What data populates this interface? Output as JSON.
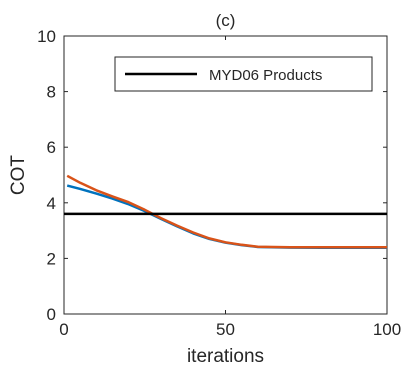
{
  "chart_data": {
    "type": "line",
    "title": "(c)",
    "xlabel": "iterations",
    "ylabel": "COT",
    "xlim": [
      0,
      100
    ],
    "ylim": [
      0,
      10
    ],
    "xticks": [
      0,
      50,
      100
    ],
    "yticks": [
      0,
      2,
      4,
      6,
      8,
      10
    ],
    "grid": false,
    "legend": {
      "placement": "top-right",
      "entries": [
        "MYD06 Products"
      ]
    },
    "series": [
      {
        "color": "#0072BD",
        "x": [
          1,
          5,
          10,
          15,
          20,
          25,
          30,
          35,
          40,
          45,
          50,
          55,
          60,
          70,
          80,
          90,
          100
        ],
        "y": [
          4.62,
          4.5,
          4.33,
          4.15,
          3.95,
          3.7,
          3.42,
          3.15,
          2.9,
          2.7,
          2.57,
          2.48,
          2.41,
          2.39,
          2.38,
          2.38,
          2.38
        ]
      },
      {
        "color": "#D95319",
        "x": [
          1,
          5,
          10,
          15,
          20,
          25,
          30,
          35,
          40,
          45,
          50,
          55,
          60,
          70,
          80,
          90,
          100
        ],
        "y": [
          4.97,
          4.72,
          4.45,
          4.23,
          4.02,
          3.75,
          3.45,
          3.18,
          2.93,
          2.72,
          2.58,
          2.49,
          2.42,
          2.4,
          2.4,
          2.4,
          2.4
        ]
      },
      {
        "name": "MYD06 Products",
        "color": "#000000",
        "x": [
          0,
          100
        ],
        "y": [
          3.6,
          3.6
        ]
      }
    ]
  }
}
